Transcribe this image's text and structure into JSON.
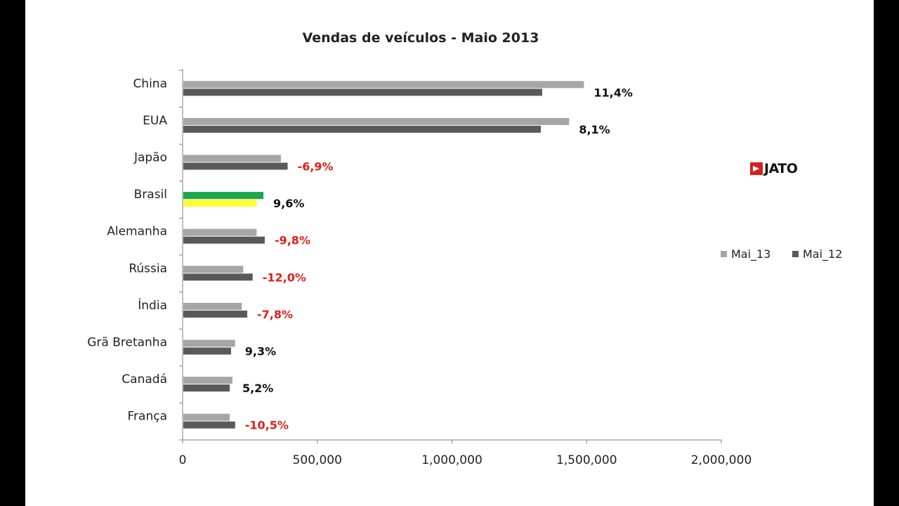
{
  "chart_data": {
    "type": "bar",
    "orientation": "horizontal",
    "title": "Vendas de veículos -  Maio 2013",
    "categories": [
      "China",
      "EUA",
      "Japão",
      "Brasil",
      "Alemanha",
      "Rússia",
      "Índia",
      "Grã Bretanha",
      "Canadá",
      "França"
    ],
    "series": [
      {
        "name": "Mai_13",
        "values": [
          1490000,
          1435000,
          365000,
          300000,
          275000,
          225000,
          220000,
          195000,
          185000,
          175000
        ]
      },
      {
        "name": "Mai_12",
        "values": [
          1335000,
          1330000,
          390000,
          275000,
          305000,
          260000,
          240000,
          180000,
          175000,
          195000
        ]
      }
    ],
    "data_labels": [
      "11,4%",
      "8,1%",
      "-6,9%",
      "9,6%",
      "-9,8%",
      "-12,0%",
      "-7,8%",
      "9,3%",
      "5,2%",
      "-10,5%"
    ],
    "label_negative": [
      false,
      false,
      true,
      false,
      true,
      true,
      true,
      false,
      false,
      true
    ],
    "xlim": [
      0,
      2000000
    ],
    "xticks": [
      "0",
      "500,000",
      "1,000,000",
      "1,500,000",
      "2,000,000"
    ],
    "legend_position": "right",
    "colors": {
      "Mai_13": "#a6a6a6",
      "Mai_12": "#595959",
      "highlight_Mai_13": "#1aa84a",
      "highlight_Mai_12": "#ffff33",
      "positive_label": "#111111",
      "negative_label": "#e0201a"
    },
    "highlight_category": "Brasil"
  },
  "logo": {
    "text": "JATO",
    "icon": "jato-arrow-icon"
  }
}
